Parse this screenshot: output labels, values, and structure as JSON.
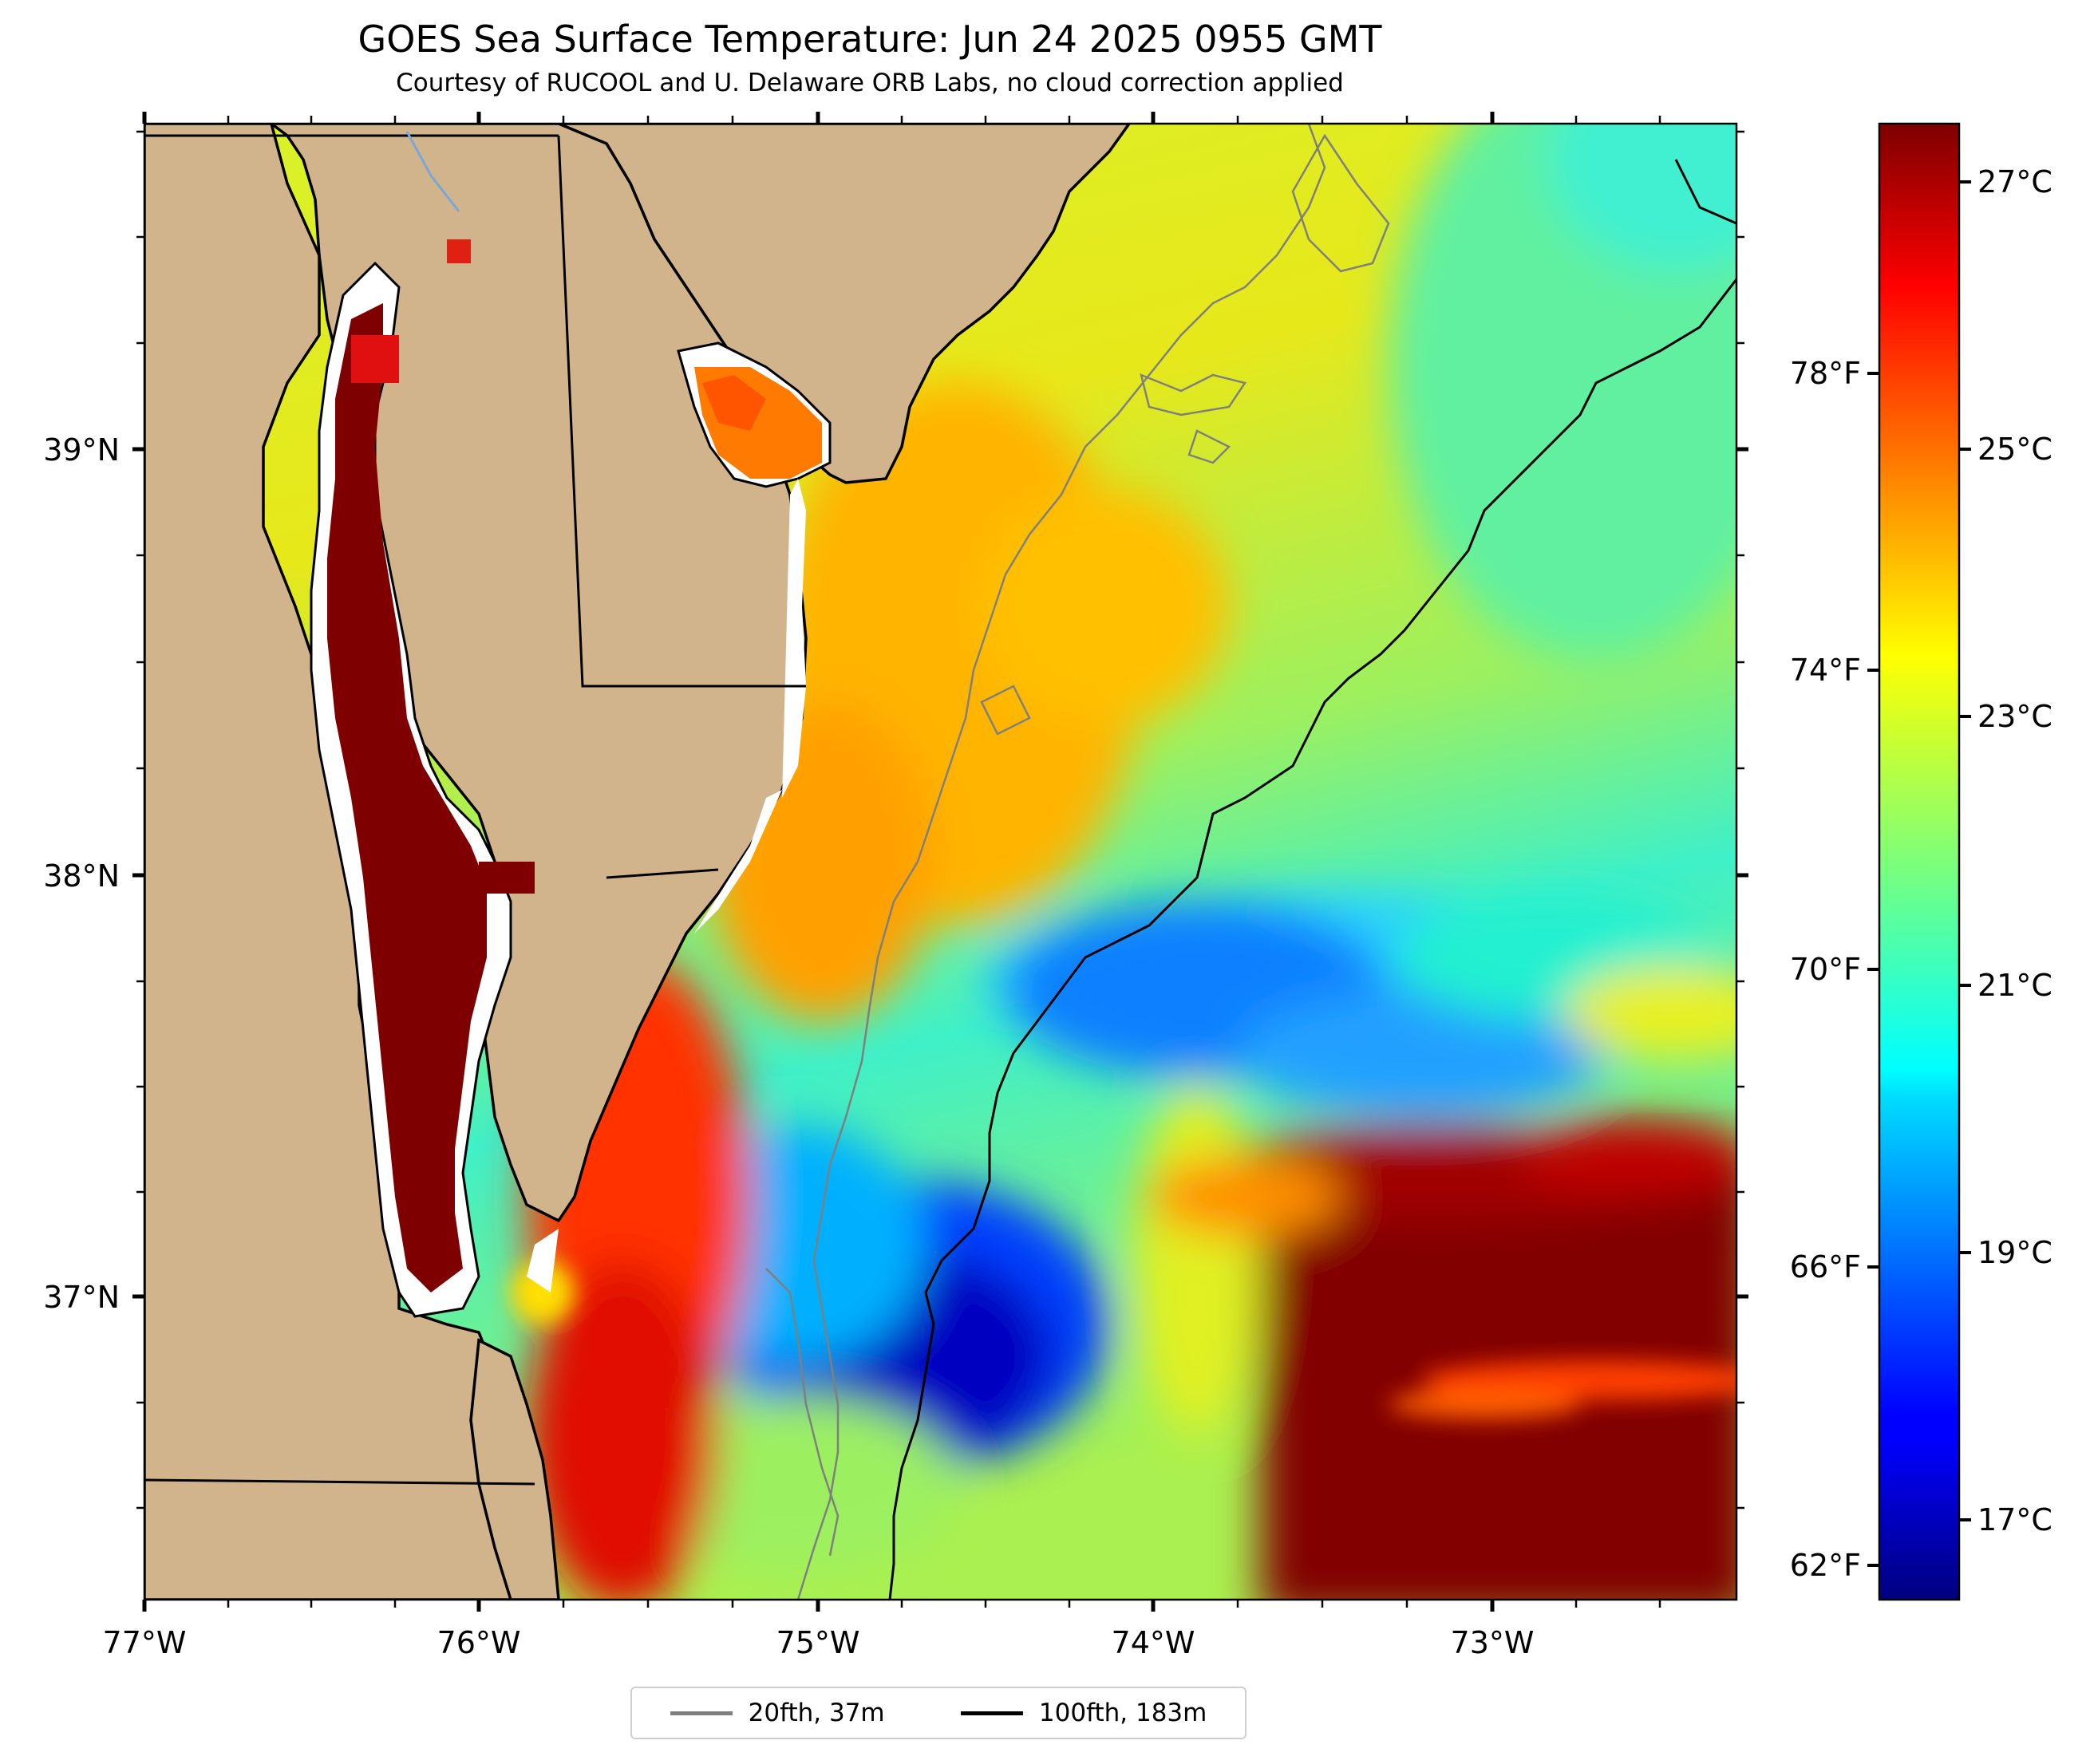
{
  "title": "GOES Sea Surface Temperature: Jun 24 2025 0955 GMT",
  "subtitle": "Courtesy of RUCOOL and U. Delaware ORB Labs, no cloud correction applied",
  "map": {
    "lon_labels": [
      "77°W",
      "76°W",
      "75°W",
      "74°W",
      "73°W"
    ],
    "lat_labels": [
      "39°N",
      "38°N",
      "37°N"
    ],
    "land_color": "#d2b48c",
    "coast_color": "#000000",
    "water_bg_color": "#ffffff"
  },
  "colorbar": {
    "celsius_labels": [
      "27°C",
      "25°C",
      "23°C",
      "21°C",
      "19°C",
      "17°C"
    ],
    "fahrenheit_labels": [
      "78°F",
      "74°F",
      "70°F",
      "66°F",
      "62°F"
    ],
    "colormap": "jet"
  },
  "legend": {
    "items": [
      {
        "label": "20fth, 37m",
        "color": "#808080"
      },
      {
        "label": "100fth, 183m",
        "color": "#000000"
      }
    ]
  }
}
